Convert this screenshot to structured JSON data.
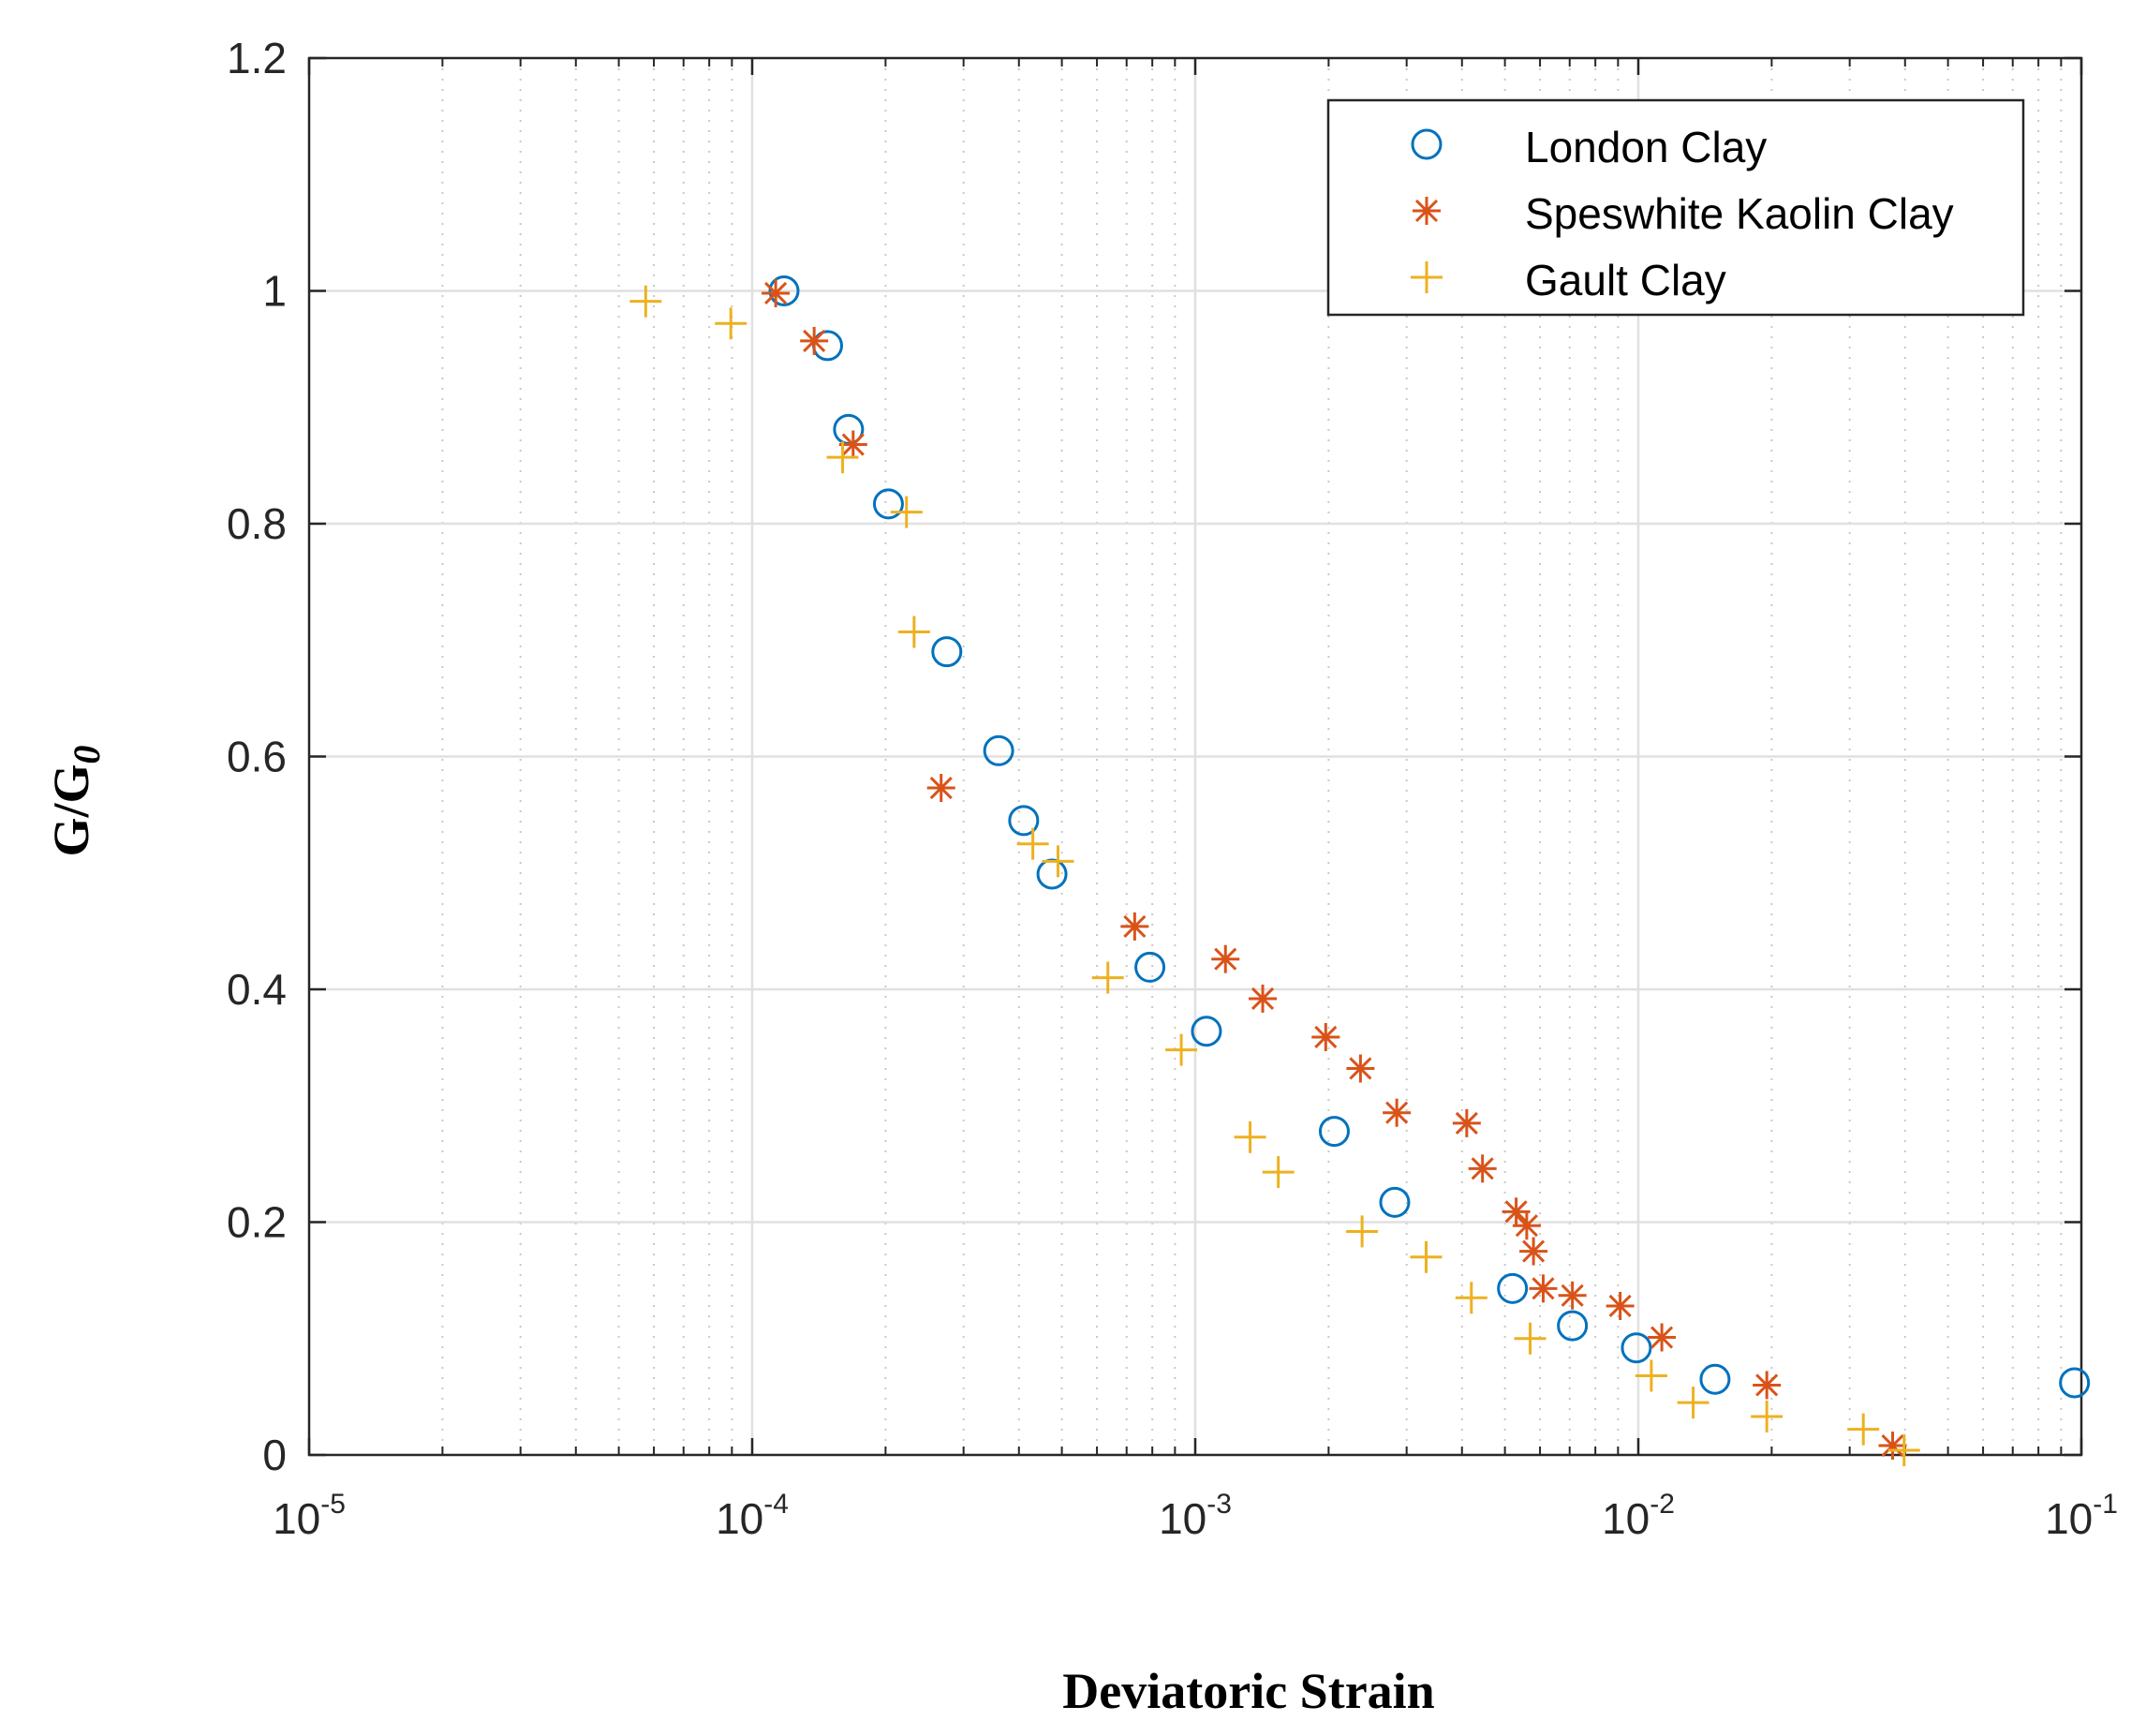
{
  "chart_data": {
    "type": "scatter",
    "xscale": "log",
    "xlim": [
      1e-05,
      0.1
    ],
    "ylim": [
      0,
      1.2
    ],
    "grid": true,
    "xlabel": "Deviatoric Strain",
    "ylabel_main": "G/G",
    "ylabel_sub": "0",
    "legend_position": "top-right",
    "x_ticks": [
      {
        "value": 1e-05,
        "base": "10",
        "exp": "-5"
      },
      {
        "value": 0.0001,
        "base": "10",
        "exp": "-4"
      },
      {
        "value": 0.001,
        "base": "10",
        "exp": "-3"
      },
      {
        "value": 0.01,
        "base": "10",
        "exp": "-2"
      },
      {
        "value": 0.1,
        "base": "10",
        "exp": "-1"
      }
    ],
    "y_ticks": [
      {
        "value": 0,
        "label": "0"
      },
      {
        "value": 0.2,
        "label": "0.2"
      },
      {
        "value": 0.4,
        "label": "0.4"
      },
      {
        "value": 0.6,
        "label": "0.6"
      },
      {
        "value": 0.8,
        "label": "0.8"
      },
      {
        "value": 1,
        "label": "1"
      },
      {
        "value": 1.2,
        "label": "1.2"
      }
    ],
    "series": [
      {
        "name": "London Clay",
        "marker": "circle",
        "color": "#0072BD",
        "points": [
          [
            0.000118,
            1.0
          ],
          [
            0.000148,
            0.953
          ],
          [
            0.000165,
            0.881
          ],
          [
            0.000203,
            0.817
          ],
          [
            0.000275,
            0.69
          ],
          [
            0.00036,
            0.605
          ],
          [
            0.00041,
            0.545
          ],
          [
            0.000475,
            0.499
          ],
          [
            0.00079,
            0.419
          ],
          [
            0.00106,
            0.364
          ],
          [
            0.00206,
            0.278
          ],
          [
            0.00282,
            0.217
          ],
          [
            0.0052,
            0.143
          ],
          [
            0.0071,
            0.111
          ],
          [
            0.0099,
            0.092
          ],
          [
            0.0149,
            0.065
          ],
          [
            0.0965,
            0.062
          ]
        ]
      },
      {
        "name": "Speswhite Kaolin Clay",
        "marker": "asterisk",
        "color": "#D95319",
        "points": [
          [
            0.000113,
            0.998
          ],
          [
            0.000138,
            0.957
          ],
          [
            0.000169,
            0.868
          ],
          [
            0.000267,
            0.573
          ],
          [
            0.00073,
            0.454
          ],
          [
            0.00117,
            0.426
          ],
          [
            0.00142,
            0.392
          ],
          [
            0.00197,
            0.359
          ],
          [
            0.00236,
            0.332
          ],
          [
            0.00285,
            0.294
          ],
          [
            0.0041,
            0.285
          ],
          [
            0.00445,
            0.246
          ],
          [
            0.0053,
            0.209
          ],
          [
            0.0056,
            0.197
          ],
          [
            0.0058,
            0.175
          ],
          [
            0.0061,
            0.143
          ],
          [
            0.0071,
            0.137
          ],
          [
            0.0091,
            0.128
          ],
          [
            0.0113,
            0.101
          ],
          [
            0.0195,
            0.06
          ],
          [
            0.0375,
            0.008
          ]
        ]
      },
      {
        "name": "Gault Clay",
        "marker": "plus",
        "color": "#EDB120",
        "points": [
          [
            5.75e-05,
            0.991
          ],
          [
            8.95e-05,
            0.972
          ],
          [
            0.00016,
            0.857
          ],
          [
            0.000223,
            0.81
          ],
          [
            0.000232,
            0.707
          ],
          [
            0.00043,
            0.525
          ],
          [
            0.00049,
            0.51
          ],
          [
            0.000635,
            0.41
          ],
          [
            0.00093,
            0.348
          ],
          [
            0.00133,
            0.273
          ],
          [
            0.00154,
            0.243
          ],
          [
            0.00238,
            0.192
          ],
          [
            0.00332,
            0.17
          ],
          [
            0.0042,
            0.135
          ],
          [
            0.0057,
            0.1
          ],
          [
            0.0107,
            0.068
          ],
          [
            0.0133,
            0.045
          ],
          [
            0.0195,
            0.033
          ],
          [
            0.0322,
            0.022
          ],
          [
            0.0398,
            0.004
          ]
        ]
      }
    ]
  }
}
